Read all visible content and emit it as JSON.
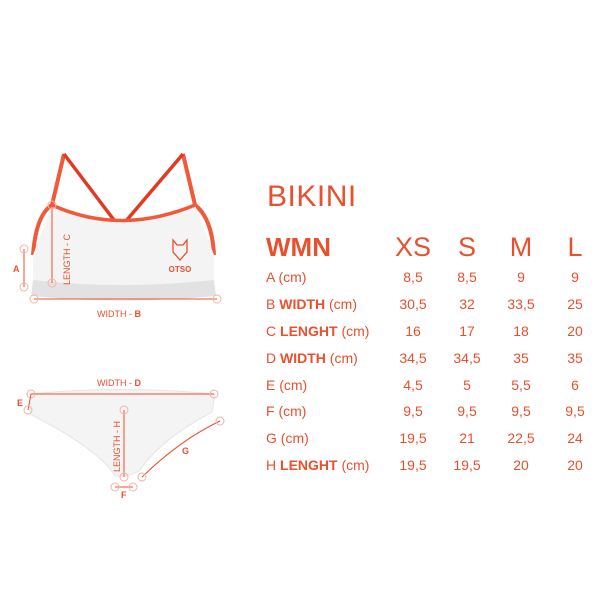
{
  "title": "BIKINI",
  "accent_color": "#e8502e",
  "illustration": {
    "top_labels": {
      "a": "A",
      "c": "LENGTH - C",
      "b_prefix": "WIDTH - ",
      "b": "B",
      "logo": "OTSO"
    },
    "bottom_labels": {
      "d_prefix": "WIDTH - ",
      "d": "D",
      "e": "E",
      "h": "LENGTH - H",
      "g": "G",
      "f": "F"
    }
  },
  "table": {
    "header": "WMN",
    "sizes": [
      "XS",
      "S",
      "M",
      "L"
    ],
    "rows": [
      {
        "letter": "A",
        "bold": "",
        "unit": "(cm)",
        "values": [
          "8,5",
          "8,5",
          "9",
          "9"
        ]
      },
      {
        "letter": "B",
        "bold": "WIDTH",
        "unit": "(cm)",
        "values": [
          "30,5",
          "32",
          "33,5",
          "25"
        ]
      },
      {
        "letter": "C",
        "bold": "LENGHT",
        "unit": "(cm)",
        "values": [
          "16",
          "17",
          "18",
          "20"
        ]
      },
      {
        "letter": "D",
        "bold": "WIDTH",
        "unit": "(cm)",
        "values": [
          "34,5",
          "34,5",
          "35",
          "35"
        ]
      },
      {
        "letter": "E",
        "bold": "",
        "unit": "(cm)",
        "values": [
          "4,5",
          "5",
          "5,5",
          "6"
        ]
      },
      {
        "letter": "F",
        "bold": "",
        "unit": "(cm)",
        "values": [
          "9,5",
          "9,5",
          "9,5",
          "9,5"
        ]
      },
      {
        "letter": "G",
        "bold": "",
        "unit": "(cm)",
        "values": [
          "19,5",
          "21",
          "22,5",
          "24"
        ]
      },
      {
        "letter": "H",
        "bold": "LENGHT",
        "unit": "(cm)",
        "values": [
          "19,5",
          "19,5",
          "20",
          "20"
        ]
      }
    ]
  }
}
